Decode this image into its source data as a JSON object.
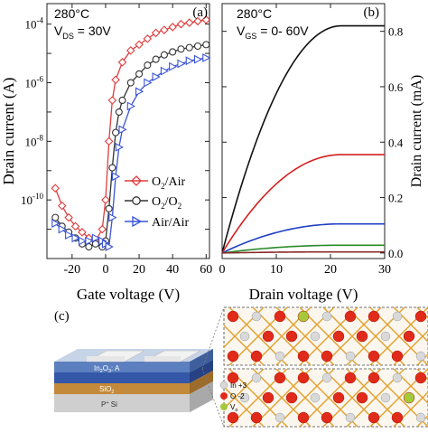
{
  "chart_data": [
    {
      "panel_label": "(a)",
      "type": "line",
      "annotations": [
        "280°C",
        "V",
        "DS",
        " = 30V"
      ],
      "xlabel": "Gate voltage (V)",
      "ylabel": "Drain current (A)",
      "xlim": [
        -35,
        62
      ],
      "ylim_log10": [
        -12,
        -3.3
      ],
      "y_scale": "log",
      "xticks": [
        "-20",
        "0",
        "20",
        "40",
        "60"
      ],
      "xtick_values": [
        -20,
        0,
        20,
        40,
        60
      ],
      "yticks": [
        {
          "base": "10",
          "exp": "-4",
          "value": -4
        },
        {
          "base": "10",
          "exp": "-6",
          "value": -6
        },
        {
          "base": "10",
          "exp": "-8",
          "value": -8
        },
        {
          "base": "10",
          "exp": "-10",
          "value": -10
        }
      ],
      "legend_position": "center-right",
      "series": [
        {
          "name_parts": [
            "O",
            "2",
            "/Air"
          ],
          "color": "#e03c3c",
          "marker": "diamond",
          "x": [
            -30,
            -26,
            -22,
            -18,
            -14,
            -10,
            -6,
            -2,
            0,
            2,
            4,
            6,
            10,
            15,
            20,
            25,
            30,
            35,
            40,
            45,
            50,
            55,
            60
          ],
          "log10_y": [
            -9.6,
            -10.2,
            -10.6,
            -10.9,
            -11.1,
            -11.3,
            -11.4,
            -11.0,
            -10.0,
            -8.0,
            -6.6,
            -5.9,
            -5.3,
            -4.9,
            -4.7,
            -4.5,
            -4.3,
            -4.2,
            -4.1,
            -4.0,
            -3.95,
            -3.9,
            -3.85
          ]
        },
        {
          "name_parts": [
            "O",
            "2",
            "/O",
            "2"
          ],
          "color": "#333333",
          "marker": "circle",
          "x": [
            -30,
            -26,
            -22,
            -18,
            -14,
            -10,
            -6,
            -2,
            0,
            2,
            4,
            6,
            8,
            10,
            15,
            20,
            25,
            30,
            35,
            40,
            45,
            50,
            55,
            60
          ],
          "log10_y": [
            -10.6,
            -10.9,
            -11.1,
            -11.3,
            -11.5,
            -11.6,
            -11.5,
            -11.6,
            -11.4,
            -10.3,
            -8.9,
            -7.7,
            -7.0,
            -6.6,
            -6.0,
            -5.7,
            -5.4,
            -5.2,
            -5.05,
            -4.95,
            -4.85,
            -4.8,
            -4.75,
            -4.7
          ]
        },
        {
          "name_parts": [
            "Air/Air"
          ],
          "color": "#3b55d6",
          "marker": "triangle-right",
          "x": [
            -30,
            -26,
            -22,
            -18,
            -14,
            -10,
            -6,
            -2,
            0,
            2,
            4,
            6,
            8,
            10,
            15,
            20,
            25,
            30,
            35,
            40,
            45,
            50,
            55,
            60
          ],
          "log10_y": [
            -10.8,
            -11.0,
            -11.2,
            -11.3,
            -11.4,
            -11.4,
            -11.3,
            -11.4,
            -11.5,
            -11.6,
            -10.6,
            -9.2,
            -8.2,
            -7.6,
            -6.8,
            -6.3,
            -6.0,
            -5.8,
            -5.6,
            -5.45,
            -5.35,
            -5.25,
            -5.2,
            -5.15
          ]
        }
      ]
    },
    {
      "panel_label": "(b)",
      "type": "line",
      "annotations": [
        "280°C",
        "V",
        "GS",
        " = 0- 60V"
      ],
      "xlabel": "Drain voltage (V)",
      "ylabel": "Drain current (mA)",
      "xlim": [
        0,
        30
      ],
      "ylim": [
        -0.02,
        0.9
      ],
      "xticks": [
        "0",
        "10",
        "20",
        "30"
      ],
      "xtick_values": [
        0,
        10,
        20,
        30
      ],
      "yticks": [
        "0.0",
        "0.2",
        "0.4",
        "0.6",
        "0.8"
      ],
      "ytick_values": [
        0.0,
        0.2,
        0.4,
        0.6,
        0.8
      ],
      "series": [
        {
          "color": "#111111",
          "saturation_current": 0.82
        },
        {
          "color": "#d42020",
          "saturation_current": 0.355
        },
        {
          "color": "#1f3fc4",
          "saturation_current": 0.105
        },
        {
          "color": "#2a8a2a",
          "saturation_current": 0.028
        },
        {
          "color": "#8a2a2a",
          "saturation_current": 0.004
        }
      ]
    }
  ],
  "panel_c": {
    "label": "(c)",
    "layers": [
      "In",
      "2",
      "O",
      "3",
      ": A",
      "SiO",
      "2",
      "P",
      "+",
      " Si"
    ],
    "legend": [
      {
        "text": "In +3",
        "color": "#d9d9d9"
      },
      {
        "text": "O -2",
        "color": "#e02a1a"
      },
      {
        "text": "V",
        "sub": "o",
        "color": "#a6c93a"
      }
    ]
  }
}
